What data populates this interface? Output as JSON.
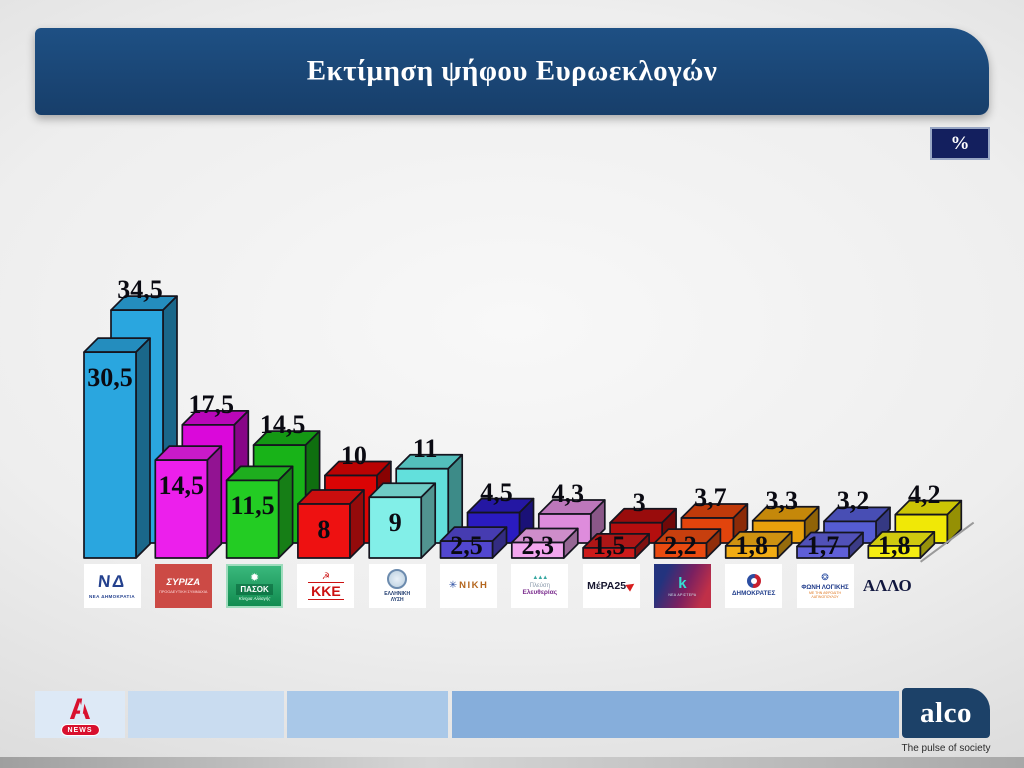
{
  "header": {
    "title": "Εκτίμηση ψήφου Ευρωεκλογών",
    "unit_badge": "%"
  },
  "chart_data": {
    "type": "bar",
    "style": "3d-paired-range",
    "title": "Εκτίμηση ψήφου Ευρωεκλογών",
    "unit": "%",
    "ylim": [
      0,
      36
    ],
    "series": [
      {
        "name": "low estimate (front bar)"
      },
      {
        "name": "high estimate (back bar)"
      }
    ],
    "parties": [
      {
        "slug": "nea-dimokratia",
        "party": "ΝΕΑ ΔΗΜΟΚΡΑΤΙΑ",
        "low": 30.5,
        "high": 34.5,
        "low_label": "30,5",
        "high_label": "34,5",
        "color_low": "#2aa6df",
        "color_high": "#2aa6df",
        "logo": {
          "style": "nd",
          "main": "ΝΔ",
          "sub": "ΝΕΑ ΔΗΜΟΚΡΑΤΙΑ"
        }
      },
      {
        "slug": "syriza",
        "party": "ΣΥΡΙΖΑ",
        "low": 14.5,
        "high": 17.5,
        "low_label": "14,5",
        "high_label": "17,5",
        "color_low": "#ec1fec",
        "color_high": "#da08da",
        "logo": {
          "style": "syriza",
          "main": "ΣΥΡΙΖΑ",
          "sub": "ΠΡΟΟΔΕΥΤΙΚΗ ΣΥΜΜΑΧΙΑ"
        }
      },
      {
        "slug": "pasok",
        "party": "ΠΑΣΟΚ - ΚΙΝΗΜΑ ΑΛΛΑΓΗΣ",
        "low": 11.5,
        "high": 14.5,
        "low_label": "11,5",
        "high_label": "14,5",
        "color_low": "#23cc23",
        "color_high": "#18b318",
        "logo": {
          "style": "pasok",
          "main": "ΠΑΣΟΚ",
          "sub": "Κίνημα Αλλαγής"
        }
      },
      {
        "slug": "kke",
        "party": "ΚΚΕ",
        "low": 8,
        "high": 10,
        "low_label": "8",
        "high_label": "10",
        "color_low": "#ee1111",
        "color_high": "#db0404",
        "logo": {
          "style": "kke",
          "main": "ΚΚΕ",
          "sub": "☭"
        }
      },
      {
        "slug": "elliniki-lysi",
        "party": "ΕΛΛΗΝΙΚΗ ΛΥΣΗ",
        "low": 9,
        "high": 11,
        "low_label": "9",
        "high_label": "11",
        "color_low": "#82efe8",
        "color_high": "#62e0dc",
        "logo": {
          "style": "ellysi",
          "main": "ΕΛΛΗΝΙΚΗ",
          "sub": "ΛΥΣΗ"
        }
      },
      {
        "slug": "niki",
        "party": "ΝΙΚΗ",
        "low": 2.5,
        "high": 4.5,
        "low_label": "2,5",
        "high_label": "4,5",
        "color_low": "#5247d0",
        "color_high": "#2a1bc0",
        "logo": {
          "style": "niki",
          "main": "ΝΙΚΗ"
        }
      },
      {
        "slug": "plefsi-eleftherias",
        "party": "ΠΛΕΥΣΗ ΕΛΕΥΘΕΡΙΑΣ",
        "low": 2.3,
        "high": 4.3,
        "low_label": "2,3",
        "high_label": "4,3",
        "color_low": "#f2a6ee",
        "color_high": "#de8cdc",
        "logo": {
          "style": "plefsi",
          "main": "Πλεύση",
          "sub": "Ελευθερίας"
        }
      },
      {
        "slug": "mera25",
        "party": "ΜέΡΑ25",
        "low": 1.5,
        "high": 3,
        "low_label": "1,5",
        "high_label": "3",
        "color_low": "#cc1a1a",
        "color_high": "#b40e0e",
        "logo": {
          "style": "mera",
          "main": "ΜέΡΑ25"
        }
      },
      {
        "slug": "nea-aristera",
        "party": "ΝΕΑ ΑΡΙΣΤΕΡΑ",
        "low": 2.2,
        "high": 3.7,
        "low_label": "2,2",
        "high_label": "3,7",
        "color_low": "#ea4a10",
        "color_high": "#e2440c",
        "logo": {
          "style": "nar",
          "main": "k",
          "sub": "ΝΕΑ ΑΡΙΣΤΕΡΑ"
        }
      },
      {
        "slug": "dimokrates",
        "party": "ΔΗΜΟΚΡΑΤΕΣ",
        "low": 1.8,
        "high": 3.3,
        "low_label": "1,8",
        "high_label": "3,3",
        "color_low": "#f2ac14",
        "color_high": "#e8a00c",
        "logo": {
          "style": "dimokrates",
          "main": "ΔΗΜΟΚΡΑΤΕΣ"
        }
      },
      {
        "slug": "foni-logikis",
        "party": "ΦΩΝΗ ΛΟΓΙΚΗΣ",
        "low": 1.7,
        "high": 3.2,
        "low_label": "1,7",
        "high_label": "3,2",
        "color_low": "#5f5fd8",
        "color_high": "#555cd4",
        "logo": {
          "style": "foni",
          "main": "ΦΩΝΗ ΛΟΓΙΚΗΣ",
          "sub": "ΜΕ ΤΗΝ ΑΦΡΟΔΙΤΗ ΛΑΤΙΝΟΠΟΥΛΟΥ"
        }
      },
      {
        "slug": "allo",
        "party": "ΑΛΛΟ",
        "low": 1.8,
        "high": 4.2,
        "low_label": "1,8",
        "high_label": "4,2",
        "color_low": "#f4ec12",
        "color_high": "#f0e806",
        "logo": {
          "style": "text",
          "main": "ΑΛΛΟ"
        }
      }
    ]
  },
  "footer": {
    "alpha": {
      "letter": "Α",
      "news": "NEWS"
    },
    "alco": {
      "name": "alco",
      "tagline": "The pulse of society"
    }
  }
}
